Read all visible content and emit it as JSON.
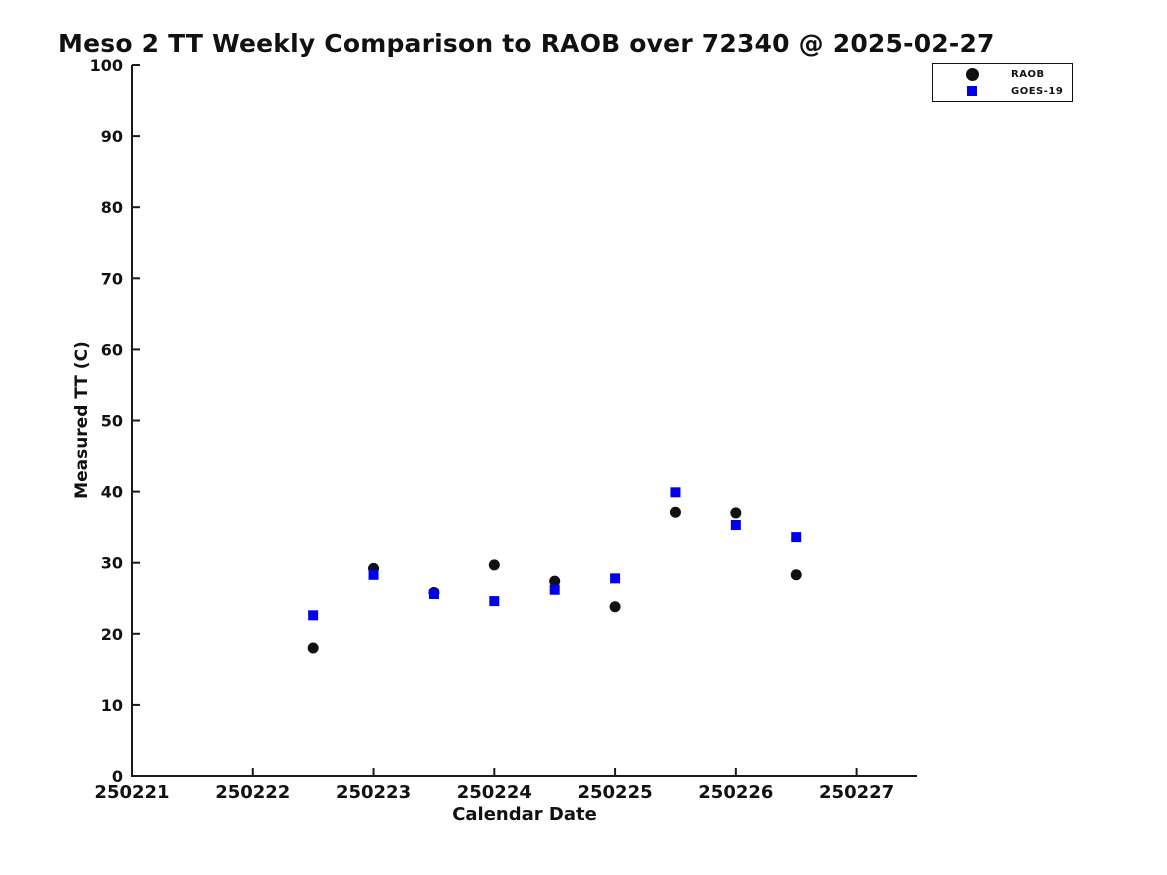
{
  "window": {
    "background": "#ffffff"
  },
  "chart_data": {
    "type": "scatter",
    "title": "Meso 2 TT Weekly Comparison to RAOB over 72340 @ 2025-02-27",
    "xlabel": "Calendar Date",
    "ylabel": "Measured TT (C)",
    "xlim": [
      250221,
      250227.5
    ],
    "ylim": [
      0,
      100
    ],
    "x_ticks": [
      250221,
      250222,
      250223,
      250224,
      250225,
      250226,
      250227
    ],
    "y_ticks": [
      0,
      10,
      20,
      30,
      40,
      50,
      60,
      70,
      80,
      90,
      100
    ],
    "grid": false,
    "legend_position": "top-right",
    "axis_color": "#1a1a1a",
    "x": [
      250222.5,
      250223.0,
      250223.5,
      250224.0,
      250224.5,
      250225.0,
      250225.5,
      250226.0,
      250226.5
    ],
    "series": [
      {
        "name": "RAOB",
        "marker": "circle",
        "color": "#111111",
        "values": [
          18.0,
          29.2,
          25.8,
          29.7,
          27.4,
          23.8,
          37.1,
          37.0,
          28.3
        ]
      },
      {
        "name": "GOES-19",
        "marker": "square",
        "color": "#0000ee",
        "values": [
          22.6,
          28.3,
          25.6,
          24.6,
          26.2,
          27.8,
          39.9,
          35.3,
          33.6
        ]
      }
    ]
  }
}
